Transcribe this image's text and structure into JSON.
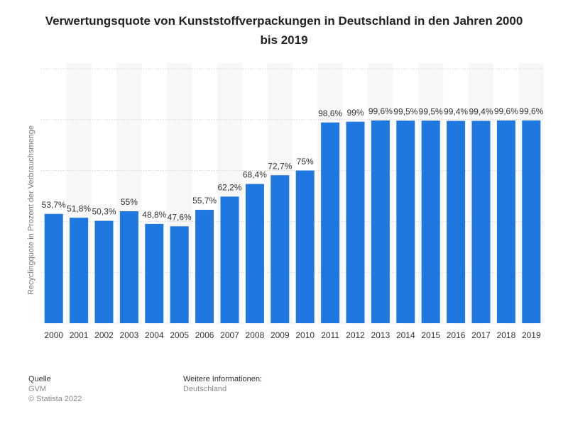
{
  "chart_data": {
    "type": "bar",
    "title": "Verwertungsquote von Kunststoffverpackungen in Deutschland in den Jahren 2000 bis 2019",
    "y_label": "Recyclingquote in Prozent der Verbrauchsmenge",
    "categories": [
      "2000",
      "2001",
      "2002",
      "2003",
      "2004",
      "2005",
      "2006",
      "2007",
      "2008",
      "2009",
      "2010",
      "2011",
      "2012",
      "2013",
      "2014",
      "2015",
      "2016",
      "2017",
      "2018",
      "2019"
    ],
    "values": [
      53.7,
      51.8,
      50.3,
      55,
      48.8,
      47.6,
      55.7,
      62.2,
      68.4,
      72.7,
      75,
      98.6,
      99,
      99.6,
      99.5,
      99.5,
      99.4,
      99.4,
      99.6,
      99.6
    ],
    "value_labels": [
      "53,7%",
      "51,8%",
      "50,3%",
      "55%",
      "48,8%",
      "47,6%",
      "55,7%",
      "62,2%",
      "68,4%",
      "72,7%",
      "75%",
      "98,6%",
      "99%",
      "99,6%",
      "99,5%",
      "99,5%",
      "99,4%",
      "99,4%",
      "99,6%",
      "99,6%"
    ],
    "color": "#1f77e0",
    "ylim": [
      0,
      125
    ],
    "yticks": [
      0,
      25,
      50,
      75,
      100,
      125
    ],
    "grid": true
  },
  "footer": {
    "source_title": "Quelle",
    "source": "GVM",
    "copyright": "© Statista 2022",
    "info_title": "Weitere Informationen:",
    "info": "Deutschland"
  }
}
